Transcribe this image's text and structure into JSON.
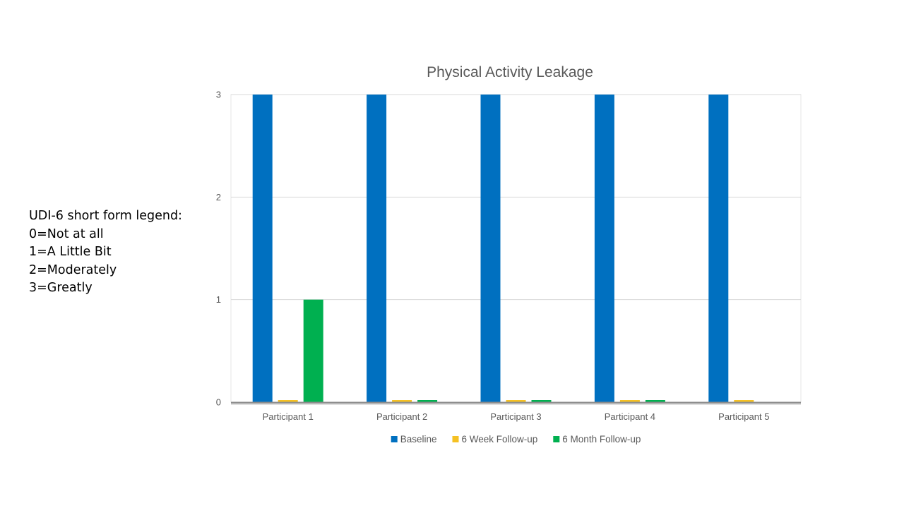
{
  "side_note": {
    "heading": "UDI-6 short form legend:",
    "lines": [
      "0=Not at all",
      "1=A Little Bit",
      "2=Moderately",
      "3=Greatly"
    ]
  },
  "chart_data": {
    "type": "bar",
    "title": "Physical Activity Leakage",
    "categories": [
      "Participant 1",
      "Participant 2",
      "Participant 3",
      "Participant 4",
      "Participant 5"
    ],
    "series": [
      {
        "name": "Baseline",
        "color": "#0070C0",
        "values": [
          3,
          3,
          3,
          3,
          3
        ]
      },
      {
        "name": "6 Week Follow-up",
        "color": "#F5C123",
        "values": [
          0,
          0,
          0,
          0,
          0
        ]
      },
      {
        "name": "6 Month Follow-up",
        "color": "#00B050",
        "values": [
          1,
          0,
          0,
          0,
          null
        ]
      }
    ],
    "ylim": [
      0,
      3
    ],
    "yticks": [
      0,
      1,
      2,
      3
    ],
    "grid": true,
    "legend_position": "bottom",
    "xlabel": "",
    "ylabel": ""
  }
}
